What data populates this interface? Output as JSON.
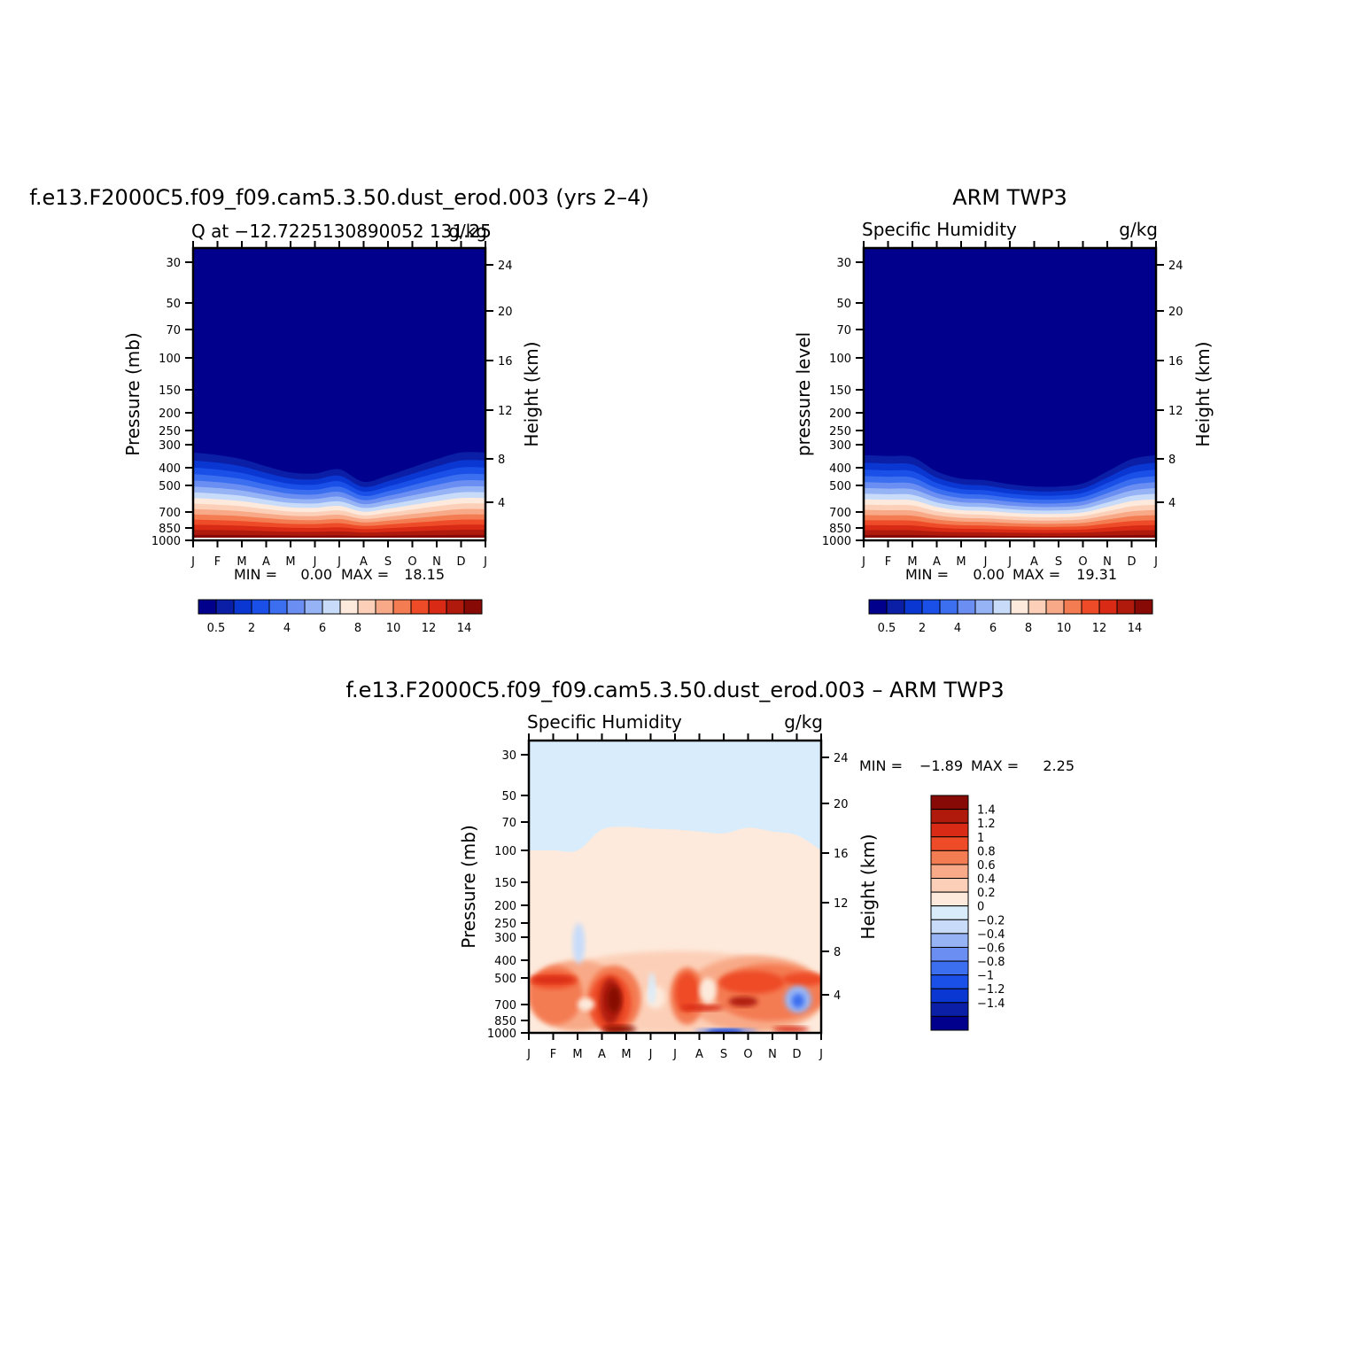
{
  "colors": {
    "abs_scale": [
      "#00008c",
      "#0a1ea6",
      "#0a37d2",
      "#1a50e8",
      "#3c6ef0",
      "#6a8ef2",
      "#96b4f5",
      "#c8dcfa",
      "#fdeadc",
      "#fcd0b8",
      "#f8aa88",
      "#f47c52",
      "#ee4c28",
      "#d82a14",
      "#b01a0c",
      "#880a06"
    ],
    "diff_scale": [
      "#00008c",
      "#0a1ea6",
      "#0a37d2",
      "#1a50e8",
      "#3c6ef0",
      "#6a8ef2",
      "#96b4f5",
      "#c8dcfa",
      "#d8ecfc",
      "#fdeadc",
      "#fcd0b8",
      "#f8aa88",
      "#f47c52",
      "#ee4c28",
      "#d82a14",
      "#b01a0c",
      "#880a06"
    ]
  },
  "chart_data": [
    {
      "type": "heatmap",
      "title": "f.e13.F2000C5.f09_f09.cam5.3.50.dust_erod.003 (yrs 2–4)",
      "subtitle_left": "Q at −12.7225130890052 131.25",
      "subtitle_right": "g/kg",
      "ylabel": "Pressure (mb)",
      "ylabel_right": "Height (km)",
      "x": [
        "J",
        "F",
        "M",
        "A",
        "M",
        "J",
        "J",
        "A",
        "S",
        "O",
        "N",
        "D",
        "J"
      ],
      "y_ticks": [
        "30",
        "50",
        "70",
        "100",
        "150",
        "200",
        "250",
        "300",
        "400",
        "500",
        "700",
        "850",
        "1000"
      ],
      "y_right_ticks": [
        "24",
        "20",
        "16",
        "12",
        "8",
        "4"
      ],
      "min_label": "MIN =",
      "min_value": "0.00",
      "max_label": "MAX =",
      "max_value": "18.15",
      "colorbar_labels": [
        "0.5",
        "2",
        "4",
        "6",
        "8",
        "10",
        "12",
        "14"
      ],
      "moisture_top_pressure": [
        290,
        300,
        320,
        355,
        385,
        390,
        370,
        440,
        400,
        360,
        320,
        290,
        290
      ]
    },
    {
      "type": "heatmap",
      "title": "ARM TWP3",
      "subtitle_left": "Specific Humidity",
      "subtitle_right": "g/kg",
      "ylabel": "pressure level",
      "ylabel_right": "Height (km)",
      "x": [
        "J",
        "F",
        "M",
        "A",
        "M",
        "J",
        "J",
        "A",
        "S",
        "O",
        "N",
        "D",
        "J"
      ],
      "y_ticks": [
        "30",
        "50",
        "70",
        "100",
        "150",
        "200",
        "250",
        "300",
        "400",
        "500",
        "700",
        "850",
        "1000"
      ],
      "y_right_ticks": [
        "24",
        "20",
        "16",
        "12",
        "8",
        "4"
      ],
      "min_label": "MIN =",
      "min_value": "0.00",
      "max_label": "MAX =",
      "max_value": "19.31",
      "colorbar_labels": [
        "0.5",
        "2",
        "4",
        "6",
        "8",
        "10",
        "12",
        "14"
      ],
      "moisture_top_pressure": [
        300,
        305,
        310,
        380,
        420,
        430,
        455,
        470,
        470,
        450,
        380,
        320,
        300
      ]
    },
    {
      "type": "heatmap",
      "title": "f.e13.F2000C5.f09_f09.cam5.3.50.dust_erod.003 – ARM TWP3",
      "subtitle_left": "Specific Humidity",
      "subtitle_right": "g/kg",
      "ylabel": "Pressure (mb)",
      "ylabel_right": "Height (km)",
      "x": [
        "J",
        "F",
        "M",
        "A",
        "M",
        "J",
        "J",
        "A",
        "S",
        "O",
        "N",
        "D",
        "J"
      ],
      "y_ticks": [
        "30",
        "50",
        "70",
        "100",
        "150",
        "200",
        "250",
        "300",
        "400",
        "500",
        "700",
        "850",
        "1000"
      ],
      "y_right_ticks": [
        "24",
        "20",
        "16",
        "12",
        "8",
        "4"
      ],
      "min_label": "MIN =",
      "min_value": "−1.89",
      "max_label": "MAX =",
      "max_value": "2.25",
      "colorbar_labels": [
        "1.4",
        "1.2",
        "1",
        "0.8",
        "0.6",
        "0.4",
        "0.2",
        "0",
        "−0.2",
        "−0.4",
        "−0.6",
        "−0.8",
        "−1",
        "−1.2",
        "−1.4"
      ],
      "zero_line_pressure": [
        100,
        100,
        100,
        78,
        75,
        77,
        78,
        80,
        82,
        76,
        80,
        84,
        100
      ]
    }
  ]
}
